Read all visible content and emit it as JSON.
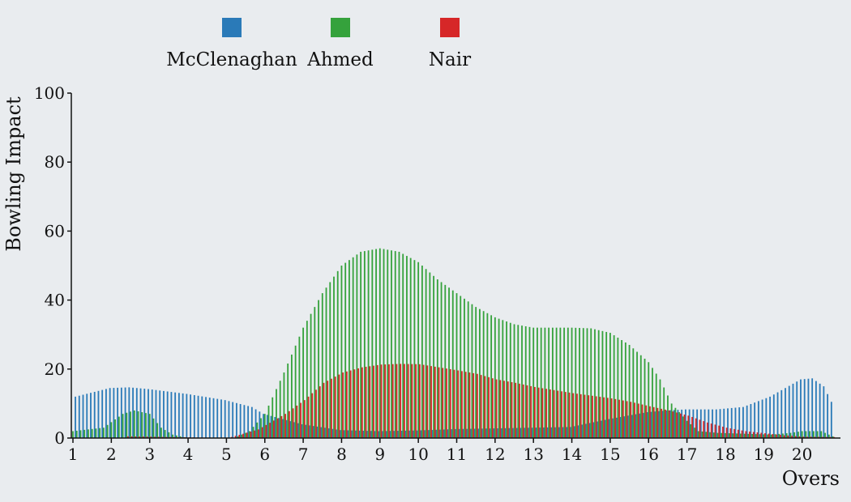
{
  "chart_data": {
    "type": "bar",
    "xlabel": "Overs",
    "ylabel": "Bowling Impact",
    "ylim": [
      0,
      100
    ],
    "y_ticks": [
      "0",
      "20",
      "40",
      "60",
      "80",
      "100"
    ],
    "xlim": [
      1,
      21
    ],
    "x_ticks": [
      "1",
      "2",
      "3",
      "4",
      "5",
      "6",
      "7",
      "8",
      "9",
      "10",
      "11",
      "12",
      "13",
      "14",
      "15",
      "16",
      "17",
      "18",
      "19",
      "20"
    ],
    "legend_position": "top",
    "sample_step": 0.1,
    "series": [
      {
        "name": "McClenaghan",
        "color": "#2a7ab8",
        "keyframes": [
          [
            1.1,
            12
          ],
          [
            2,
            14.5
          ],
          [
            2.5,
            14.7
          ],
          [
            3,
            14.2
          ],
          [
            4,
            12.8
          ],
          [
            5,
            11
          ],
          [
            5.7,
            9
          ],
          [
            6,
            7
          ],
          [
            7,
            4
          ],
          [
            8,
            2.3
          ],
          [
            9,
            2
          ],
          [
            10,
            2.2
          ],
          [
            11,
            2.6
          ],
          [
            12,
            2.8
          ],
          [
            13,
            3
          ],
          [
            14,
            3.2
          ],
          [
            15,
            5.5
          ],
          [
            16,
            7.5
          ],
          [
            16.5,
            8
          ],
          [
            17,
            8.3
          ],
          [
            17.8,
            8.3
          ],
          [
            18.5,
            9
          ],
          [
            19.2,
            12
          ],
          [
            20,
            17
          ],
          [
            20.3,
            17.3
          ],
          [
            20.6,
            15
          ],
          [
            20.8,
            10.5
          ]
        ]
      },
      {
        "name": "Ahmed",
        "color": "#35a23c",
        "keyframes": [
          [
            1,
            2
          ],
          [
            1.8,
            3
          ],
          [
            2.3,
            7
          ],
          [
            2.6,
            8
          ],
          [
            3,
            7
          ],
          [
            3.3,
            3
          ],
          [
            3.6,
            1
          ],
          [
            4,
            0
          ],
          [
            5.2,
            0
          ],
          [
            5.6,
            2
          ],
          [
            6,
            7
          ],
          [
            6.5,
            19
          ],
          [
            7,
            32
          ],
          [
            7.5,
            42
          ],
          [
            8,
            50
          ],
          [
            8.5,
            54
          ],
          [
            9,
            55
          ],
          [
            9.5,
            54
          ],
          [
            10,
            51
          ],
          [
            10.5,
            46
          ],
          [
            11,
            42
          ],
          [
            11.5,
            38
          ],
          [
            12,
            35
          ],
          [
            12.5,
            33
          ],
          [
            13,
            32
          ],
          [
            14,
            32
          ],
          [
            14.5,
            31.8
          ],
          [
            15,
            30.5
          ],
          [
            15.5,
            27
          ],
          [
            16,
            22
          ],
          [
            16.3,
            17
          ],
          [
            16.6,
            10
          ],
          [
            17,
            5
          ],
          [
            17.3,
            2
          ],
          [
            17.8,
            1.5
          ],
          [
            19.2,
            1
          ],
          [
            19.7,
            1.5
          ],
          [
            20,
            2
          ],
          [
            20.5,
            2
          ],
          [
            20.8,
            0.5
          ]
        ]
      },
      {
        "name": "Nair",
        "color": "#d62728",
        "keyframes": [
          [
            2.4,
            0.5
          ],
          [
            3.5,
            0.3
          ],
          [
            5,
            0
          ],
          [
            5.8,
            2.5
          ],
          [
            6.5,
            7
          ],
          [
            7,
            11
          ],
          [
            7.5,
            16
          ],
          [
            8,
            19
          ],
          [
            8.5,
            20.5
          ],
          [
            9,
            21.3
          ],
          [
            9.5,
            21.5
          ],
          [
            10,
            21.4
          ],
          [
            10.5,
            20.5
          ],
          [
            11,
            19.6
          ],
          [
            11.5,
            18.6
          ],
          [
            12,
            17
          ],
          [
            12.5,
            16
          ],
          [
            13,
            14.8
          ],
          [
            14,
            13
          ],
          [
            15,
            11.5
          ],
          [
            15.5,
            10.5
          ],
          [
            16,
            9.2
          ],
          [
            16.5,
            8
          ],
          [
            17,
            6.5
          ],
          [
            17.5,
            4.5
          ],
          [
            18,
            3
          ],
          [
            18.5,
            2
          ],
          [
            19,
            1.4
          ],
          [
            19.5,
            0.8
          ],
          [
            20,
            0.4
          ],
          [
            20.8,
            0.3
          ],
          [
            20.9,
            1
          ]
        ]
      }
    ]
  }
}
